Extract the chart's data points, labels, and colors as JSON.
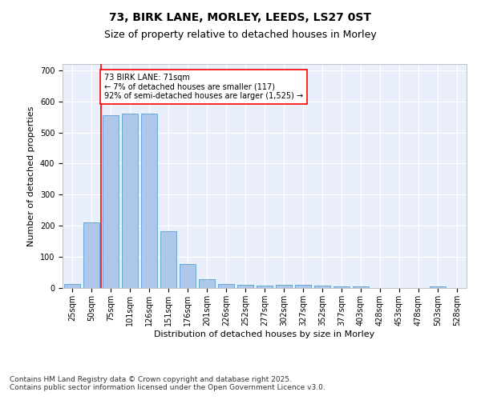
{
  "title_line1": "73, BIRK LANE, MORLEY, LEEDS, LS27 0ST",
  "title_line2": "Size of property relative to detached houses in Morley",
  "xlabel": "Distribution of detached houses by size in Morley",
  "ylabel": "Number of detached properties",
  "categories": [
    "25sqm",
    "50sqm",
    "75sqm",
    "101sqm",
    "126sqm",
    "151sqm",
    "176sqm",
    "201sqm",
    "226sqm",
    "252sqm",
    "277sqm",
    "302sqm",
    "327sqm",
    "352sqm",
    "377sqm",
    "403sqm",
    "428sqm",
    "453sqm",
    "478sqm",
    "503sqm",
    "528sqm"
  ],
  "values": [
    12,
    210,
    555,
    560,
    560,
    182,
    78,
    28,
    12,
    10,
    8,
    10,
    10,
    7,
    5,
    5,
    0,
    0,
    0,
    5,
    0
  ],
  "bar_color": "#aec6e8",
  "bar_edge_color": "#5a9fd4",
  "vline_x": 1.5,
  "vline_color": "red",
  "annotation_text": "73 BIRK LANE: 71sqm\n← 7% of detached houses are smaller (117)\n92% of semi-detached houses are larger (1,525) →",
  "annotation_box_color": "white",
  "annotation_box_edge": "red",
  "ylim": [
    0,
    720
  ],
  "yticks": [
    0,
    100,
    200,
    300,
    400,
    500,
    600,
    700
  ],
  "background_color": "#eaf0fb",
  "grid_color": "white",
  "footer_text": "Contains HM Land Registry data © Crown copyright and database right 2025.\nContains public sector information licensed under the Open Government Licence v3.0.",
  "title_fontsize": 10,
  "subtitle_fontsize": 9,
  "axis_label_fontsize": 8,
  "tick_fontsize": 7,
  "annotation_fontsize": 7,
  "footer_fontsize": 6.5
}
